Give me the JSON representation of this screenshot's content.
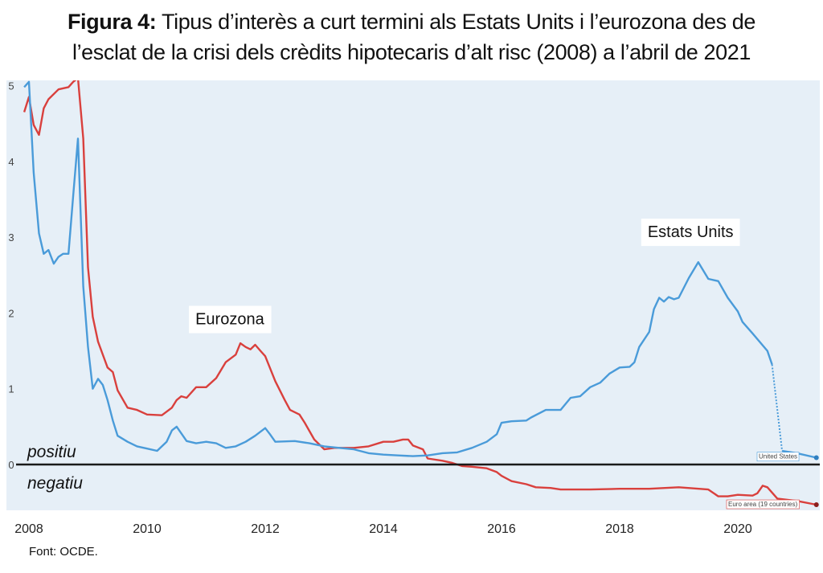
{
  "header": {
    "figure_label": "Figura 4:",
    "title_line1_rest": "Tipus d’interès a curt termini als Estats Units i l’eurozona des de",
    "title_line2": "l’esclat de la crisi dels crèdits hipotecaris d’alt risc (2008) a l’abril de 2021"
  },
  "source": "Font: OCDE.",
  "colors": {
    "plot_bg": "#e6eff7",
    "us": "#4a9bd9",
    "ez": "#d9403d",
    "zero_line": "#1a1a1a"
  },
  "chart_data": {
    "type": "line",
    "x_ticks": [
      "2008",
      "2010",
      "2012",
      "2014",
      "2016",
      "2018",
      "2020"
    ],
    "y_ticks": [
      "0",
      "1",
      "2",
      "3",
      "4",
      "5"
    ],
    "xlim": [
      2007.9,
      2021.5
    ],
    "ylim": [
      -0.62,
      5.2
    ],
    "grid": false,
    "zero_line_labels": {
      "above": "positiu",
      "below": "negatiu"
    },
    "annotations": [
      {
        "text": "Estats Units",
        "series": "us",
        "x": 2019.2,
        "y": 3.0
      },
      {
        "text": "Eurozona",
        "series": "ez",
        "x": 2011.4,
        "y": 1.85
      }
    ],
    "end_labels": {
      "us": "United States",
      "ez": "Euro area (19 countries)"
    },
    "series": [
      {
        "id": "us",
        "name": "United States",
        "points": [
          [
            2007.92,
            4.98
          ],
          [
            2008.0,
            5.05
          ],
          [
            2008.08,
            3.85
          ],
          [
            2008.17,
            3.05
          ],
          [
            2008.25,
            2.78
          ],
          [
            2008.33,
            2.83
          ],
          [
            2008.42,
            2.65
          ],
          [
            2008.5,
            2.74
          ],
          [
            2008.58,
            2.78
          ],
          [
            2008.67,
            2.78
          ],
          [
            2008.75,
            3.55
          ],
          [
            2008.83,
            4.3
          ],
          [
            2008.92,
            2.35
          ],
          [
            2009.0,
            1.55
          ],
          [
            2009.08,
            1.0
          ],
          [
            2009.17,
            1.13
          ],
          [
            2009.25,
            1.05
          ],
          [
            2009.33,
            0.85
          ],
          [
            2009.42,
            0.58
          ],
          [
            2009.5,
            0.38
          ],
          [
            2009.67,
            0.3
          ],
          [
            2009.83,
            0.24
          ],
          [
            2010.0,
            0.21
          ],
          [
            2010.17,
            0.18
          ],
          [
            2010.33,
            0.3
          ],
          [
            2010.42,
            0.45
          ],
          [
            2010.5,
            0.5
          ],
          [
            2010.67,
            0.31
          ],
          [
            2010.83,
            0.28
          ],
          [
            2011.0,
            0.3
          ],
          [
            2011.17,
            0.28
          ],
          [
            2011.33,
            0.22
          ],
          [
            2011.5,
            0.24
          ],
          [
            2011.67,
            0.3
          ],
          [
            2011.83,
            0.38
          ],
          [
            2012.0,
            0.48
          ],
          [
            2012.08,
            0.4
          ],
          [
            2012.17,
            0.3
          ],
          [
            2012.5,
            0.31
          ],
          [
            2012.75,
            0.28
          ],
          [
            2013.0,
            0.24
          ],
          [
            2013.25,
            0.22
          ],
          [
            2013.5,
            0.2
          ],
          [
            2013.75,
            0.15
          ],
          [
            2014.0,
            0.13
          ],
          [
            2014.25,
            0.12
          ],
          [
            2014.5,
            0.11
          ],
          [
            2014.75,
            0.12
          ],
          [
            2015.0,
            0.15
          ],
          [
            2015.25,
            0.16
          ],
          [
            2015.5,
            0.22
          ],
          [
            2015.75,
            0.3
          ],
          [
            2015.92,
            0.4
          ],
          [
            2016.0,
            0.55
          ],
          [
            2016.17,
            0.57
          ],
          [
            2016.42,
            0.58
          ],
          [
            2016.5,
            0.62
          ],
          [
            2016.75,
            0.72
          ],
          [
            2017.0,
            0.72
          ],
          [
            2017.17,
            0.88
          ],
          [
            2017.33,
            0.9
          ],
          [
            2017.5,
            1.02
          ],
          [
            2017.67,
            1.08
          ],
          [
            2017.83,
            1.2
          ],
          [
            2018.0,
            1.28
          ],
          [
            2018.17,
            1.29
          ],
          [
            2018.25,
            1.35
          ],
          [
            2018.33,
            1.55
          ],
          [
            2018.5,
            1.75
          ],
          [
            2018.58,
            2.05
          ],
          [
            2018.67,
            2.2
          ],
          [
            2018.75,
            2.15
          ],
          [
            2018.83,
            2.21
          ],
          [
            2018.92,
            2.18
          ],
          [
            2019.0,
            2.2
          ],
          [
            2019.17,
            2.46
          ],
          [
            2019.33,
            2.67
          ],
          [
            2019.5,
            2.45
          ],
          [
            2019.67,
            2.42
          ],
          [
            2019.83,
            2.2
          ],
          [
            2020.0,
            2.02
          ],
          [
            2020.08,
            1.88
          ],
          [
            2020.25,
            1.73
          ],
          [
            2020.5,
            1.5
          ],
          [
            2020.58,
            1.32
          ]
        ],
        "tail": [
          [
            2020.58,
            1.32
          ],
          [
            2020.75,
            0.18
          ],
          [
            2021.0,
            0.15
          ],
          [
            2021.33,
            0.09
          ]
        ]
      },
      {
        "id": "ez",
        "name": "Euro area (19 countries)",
        "points": [
          [
            2007.92,
            4.65
          ],
          [
            2008.0,
            4.85
          ],
          [
            2008.08,
            4.48
          ],
          [
            2008.17,
            4.35
          ],
          [
            2008.25,
            4.7
          ],
          [
            2008.33,
            4.82
          ],
          [
            2008.5,
            4.95
          ],
          [
            2008.67,
            4.98
          ],
          [
            2008.75,
            5.05
          ],
          [
            2008.83,
            5.1
          ],
          [
            2008.92,
            4.3
          ],
          [
            2009.0,
            2.6
          ],
          [
            2009.08,
            1.95
          ],
          [
            2009.17,
            1.62
          ],
          [
            2009.33,
            1.28
          ],
          [
            2009.42,
            1.22
          ],
          [
            2009.5,
            0.98
          ],
          [
            2009.67,
            0.75
          ],
          [
            2009.83,
            0.72
          ],
          [
            2010.0,
            0.66
          ],
          [
            2010.25,
            0.65
          ],
          [
            2010.42,
            0.75
          ],
          [
            2010.5,
            0.85
          ],
          [
            2010.58,
            0.9
          ],
          [
            2010.67,
            0.88
          ],
          [
            2010.83,
            1.02
          ],
          [
            2011.0,
            1.02
          ],
          [
            2011.17,
            1.14
          ],
          [
            2011.33,
            1.35
          ],
          [
            2011.5,
            1.45
          ],
          [
            2011.58,
            1.6
          ],
          [
            2011.67,
            1.55
          ],
          [
            2011.75,
            1.52
          ],
          [
            2011.83,
            1.58
          ],
          [
            2011.92,
            1.5
          ],
          [
            2012.0,
            1.43
          ],
          [
            2012.17,
            1.1
          ],
          [
            2012.33,
            0.85
          ],
          [
            2012.42,
            0.72
          ],
          [
            2012.58,
            0.66
          ],
          [
            2012.67,
            0.55
          ],
          [
            2012.83,
            0.33
          ],
          [
            2013.0,
            0.2
          ],
          [
            2013.17,
            0.22
          ],
          [
            2013.5,
            0.22
          ],
          [
            2013.75,
            0.24
          ],
          [
            2014.0,
            0.3
          ],
          [
            2014.17,
            0.3
          ],
          [
            2014.33,
            0.33
          ],
          [
            2014.42,
            0.33
          ],
          [
            2014.5,
            0.25
          ],
          [
            2014.67,
            0.2
          ],
          [
            2014.75,
            0.08
          ],
          [
            2015.0,
            0.05
          ],
          [
            2015.17,
            0.02
          ],
          [
            2015.33,
            -0.02
          ],
          [
            2015.5,
            -0.03
          ],
          [
            2015.75,
            -0.05
          ],
          [
            2015.92,
            -0.1
          ],
          [
            2016.0,
            -0.15
          ],
          [
            2016.17,
            -0.22
          ],
          [
            2016.42,
            -0.26
          ],
          [
            2016.58,
            -0.3
          ],
          [
            2016.83,
            -0.31
          ],
          [
            2017.0,
            -0.33
          ],
          [
            2017.5,
            -0.33
          ],
          [
            2018.0,
            -0.32
          ],
          [
            2018.5,
            -0.32
          ],
          [
            2019.0,
            -0.3
          ],
          [
            2019.5,
            -0.33
          ],
          [
            2019.67,
            -0.42
          ],
          [
            2019.83,
            -0.42
          ],
          [
            2020.0,
            -0.4
          ],
          [
            2020.25,
            -0.41
          ],
          [
            2020.33,
            -0.38
          ],
          [
            2020.42,
            -0.28
          ],
          [
            2020.5,
            -0.3
          ],
          [
            2020.67,
            -0.45
          ],
          [
            2021.0,
            -0.48
          ],
          [
            2021.33,
            -0.53
          ]
        ]
      }
    ]
  }
}
